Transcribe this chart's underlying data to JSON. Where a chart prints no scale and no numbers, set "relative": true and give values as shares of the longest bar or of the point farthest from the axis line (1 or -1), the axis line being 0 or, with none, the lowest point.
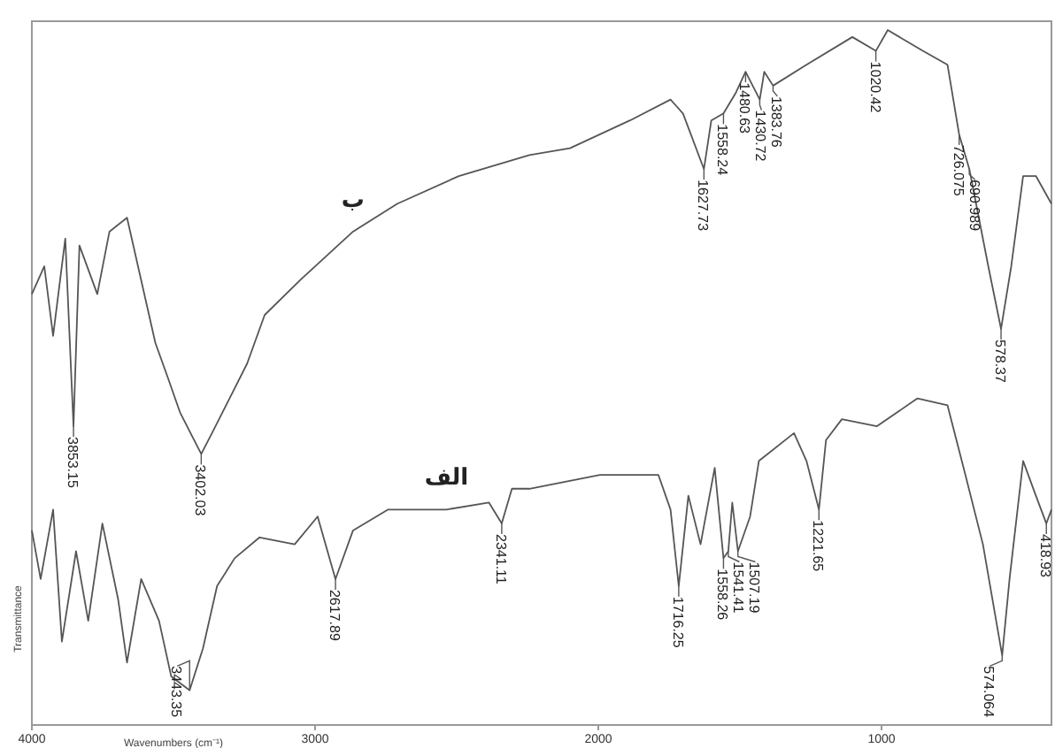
{
  "chart_data": {
    "type": "line",
    "relative": true,
    "xlabel": "Wavenumbers (cm⁻¹)",
    "ylabel": "Transmittance",
    "xlim": [
      4000,
      400
    ],
    "xticks": [
      4000,
      3000,
      2000,
      1000
    ],
    "series": [
      {
        "name": "ب",
        "color": "#555555",
        "x": [
          4000,
          3956,
          3925,
          3882,
          3853,
          3832,
          3769,
          3726,
          3664,
          3614,
          3564,
          3520,
          3477,
          3402,
          3364,
          3302,
          3240,
          3178,
          3053,
          2866,
          2710,
          2492,
          2243,
          2100,
          1888,
          1745,
          1701,
          1627,
          1601,
          1558,
          1514,
          1480,
          1430,
          1414,
          1383,
          1265,
          1103,
          1020,
          978,
          854,
          767,
          726,
          690,
          623,
          578,
          542,
          500,
          455,
          400
        ],
        "values": [
          0.62,
          0.66,
          0.56,
          0.7,
          0.43,
          0.69,
          0.62,
          0.71,
          0.73,
          0.64,
          0.55,
          0.5,
          0.45,
          0.39,
          0.42,
          0.47,
          0.52,
          0.59,
          0.64,
          0.71,
          0.75,
          0.79,
          0.82,
          0.83,
          0.87,
          0.9,
          0.88,
          0.8,
          0.87,
          0.88,
          0.91,
          0.94,
          0.9,
          0.94,
          0.92,
          0.95,
          0.99,
          0.97,
          1.0,
          0.97,
          0.95,
          0.85,
          0.8,
          0.66,
          0.57,
          0.66,
          0.79,
          0.79,
          0.75
        ]
      },
      {
        "name": "الف",
        "color": "#555555",
        "x": [
          4000,
          3969,
          3925,
          3894,
          3844,
          3801,
          3751,
          3695,
          3664,
          3614,
          3551,
          3508,
          3443,
          3396,
          3346,
          3284,
          3196,
          3072,
          2991,
          2928,
          2866,
          2742,
          2536,
          2386,
          2341,
          2305,
          2243,
          1994,
          1788,
          1745,
          1716,
          1682,
          1639,
          1589,
          1558,
          1541,
          1527,
          1507,
          1464,
          1433,
          1309,
          1265,
          1221,
          1196,
          1140,
          1016,
          873,
          767,
          704,
          642,
          574,
          548,
          500,
          455,
          418,
          400
        ],
        "values": [
          0.28,
          0.21,
          0.31,
          0.12,
          0.25,
          0.15,
          0.29,
          0.18,
          0.09,
          0.21,
          0.15,
          0.07,
          0.05,
          0.11,
          0.2,
          0.24,
          0.27,
          0.26,
          0.3,
          0.21,
          0.28,
          0.31,
          0.31,
          0.32,
          0.29,
          0.34,
          0.34,
          0.36,
          0.36,
          0.31,
          0.2,
          0.33,
          0.26,
          0.37,
          0.24,
          0.25,
          0.32,
          0.25,
          0.3,
          0.38,
          0.42,
          0.38,
          0.31,
          0.41,
          0.44,
          0.43,
          0.47,
          0.46,
          0.36,
          0.26,
          0.1,
          0.21,
          0.38,
          0.33,
          0.29,
          0.31
        ]
      }
    ],
    "annotations": [
      {
        "text": "3853.15",
        "x": 3853,
        "y": 0.43
      },
      {
        "text": "3402.03",
        "x": 3402,
        "y": 0.39
      },
      {
        "text": "1627.73",
        "x": 1627,
        "y": 0.8
      },
      {
        "text": "1558.24",
        "x": 1558,
        "y": 0.88
      },
      {
        "text": "1480.63",
        "x": 1480,
        "y": 0.94
      },
      {
        "text": "1430.72",
        "x": 1430,
        "y": 0.9
      },
      {
        "text": "1383.76",
        "x": 1383,
        "y": 0.92
      },
      {
        "text": "1020.42",
        "x": 1020,
        "y": 0.97
      },
      {
        "text": "726.075",
        "x": 726,
        "y": 0.85
      },
      {
        "text": "690.989",
        "x": 690,
        "y": 0.8
      },
      {
        "text": "578.37",
        "x": 578,
        "y": 0.57
      },
      {
        "text": "3443.35",
        "x": 3443,
        "y": 0.05
      },
      {
        "text": "2617.89",
        "x": 2928,
        "y": 0.21
      },
      {
        "text": "2341.11",
        "x": 2341,
        "y": 0.29
      },
      {
        "text": "1716.25",
        "x": 1716,
        "y": 0.2
      },
      {
        "text": "1558.26",
        "x": 1558,
        "y": 0.24
      },
      {
        "text": "1541.41",
        "x": 1541,
        "y": 0.25
      },
      {
        "text": "1507.19",
        "x": 1507,
        "y": 0.25
      },
      {
        "text": "1221.65",
        "x": 1221,
        "y": 0.31
      },
      {
        "text": "574.064",
        "x": 574,
        "y": 0.1
      },
      {
        "text": "418.93",
        "x": 418,
        "y": 0.29
      }
    ]
  }
}
